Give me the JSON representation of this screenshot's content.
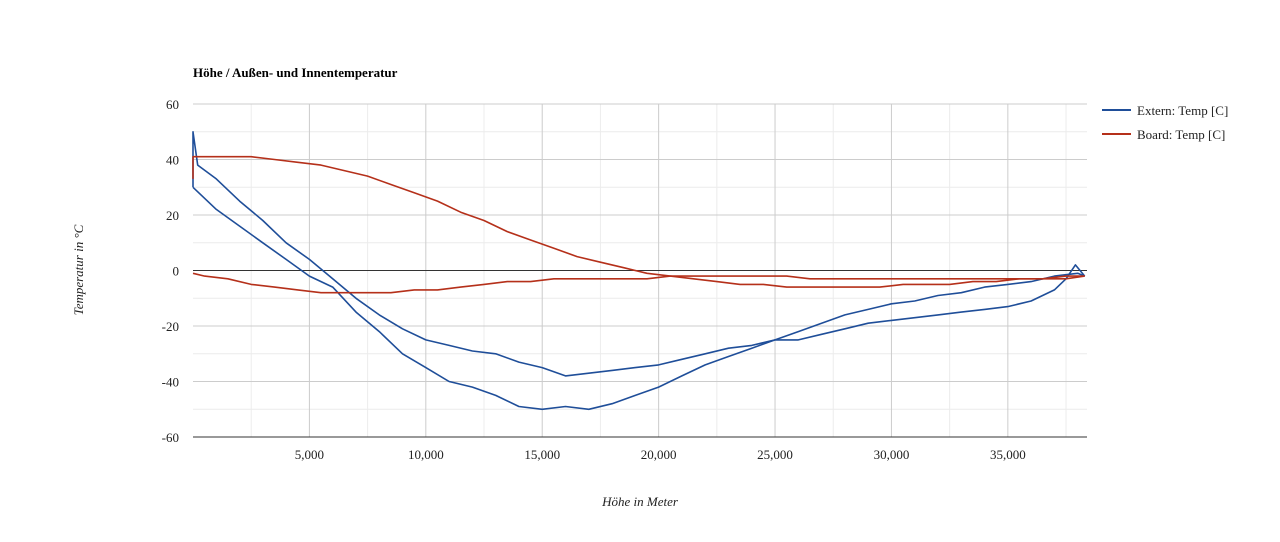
{
  "chart_data": {
    "type": "line",
    "title": "Höhe / Außen- und Innentemperatur",
    "xlabel": "Höhe in Meter",
    "ylabel": "Temperatur in °C",
    "xlim": [
      0,
      38400
    ],
    "ylim": [
      -60,
      60
    ],
    "x_ticks": [
      5000,
      10000,
      15000,
      20000,
      25000,
      30000,
      35000
    ],
    "x_tick_labels": [
      "5,000",
      "10,000",
      "15,000",
      "20,000",
      "25,000",
      "30,000",
      "35,000"
    ],
    "y_ticks": [
      -60,
      -40,
      -20,
      0,
      20,
      40,
      60
    ],
    "y_tick_labels": [
      "-60",
      "-40",
      "-20",
      "0",
      "20",
      "40",
      "60"
    ],
    "grid": true,
    "legend_position": "right",
    "series": [
      {
        "name": "Extern: Temp [C]",
        "color": "#1f4e99",
        "ascent": [
          [
            0,
            30
          ],
          [
            0,
            50
          ],
          [
            200,
            38
          ],
          [
            1000,
            33
          ],
          [
            2000,
            25
          ],
          [
            3000,
            18
          ],
          [
            4000,
            10
          ],
          [
            5000,
            4
          ],
          [
            6000,
            -3
          ],
          [
            7000,
            -10
          ],
          [
            8000,
            -16
          ],
          [
            9000,
            -21
          ],
          [
            10000,
            -25
          ],
          [
            11000,
            -27
          ],
          [
            12000,
            -29
          ],
          [
            13000,
            -30
          ],
          [
            14000,
            -33
          ],
          [
            15000,
            -35
          ],
          [
            16000,
            -38
          ],
          [
            17000,
            -37
          ],
          [
            18000,
            -36
          ],
          [
            19000,
            -35
          ],
          [
            20000,
            -34
          ],
          [
            21000,
            -32
          ],
          [
            22000,
            -30
          ],
          [
            23000,
            -28
          ],
          [
            24000,
            -27
          ],
          [
            25000,
            -25
          ],
          [
            26000,
            -25
          ],
          [
            27000,
            -23
          ],
          [
            28000,
            -21
          ],
          [
            29000,
            -19
          ],
          [
            30000,
            -18
          ],
          [
            31000,
            -17
          ],
          [
            32000,
            -16
          ],
          [
            33000,
            -15
          ],
          [
            34000,
            -14
          ],
          [
            35000,
            -13
          ],
          [
            36000,
            -11
          ],
          [
            37000,
            -7
          ],
          [
            37500,
            -3
          ],
          [
            37900,
            2
          ],
          [
            38300,
            -2
          ]
        ],
        "descent": [
          [
            38300,
            -2
          ],
          [
            38000,
            -1
          ],
          [
            37000,
            -2
          ],
          [
            36000,
            -4
          ],
          [
            35000,
            -5
          ],
          [
            34000,
            -6
          ],
          [
            33000,
            -8
          ],
          [
            32000,
            -9
          ],
          [
            31000,
            -11
          ],
          [
            30000,
            -12
          ],
          [
            29000,
            -14
          ],
          [
            28000,
            -16
          ],
          [
            27000,
            -19
          ],
          [
            26000,
            -22
          ],
          [
            25000,
            -25
          ],
          [
            24000,
            -28
          ],
          [
            23000,
            -31
          ],
          [
            22000,
            -34
          ],
          [
            21000,
            -38
          ],
          [
            20000,
            -42
          ],
          [
            19000,
            -45
          ],
          [
            18000,
            -48
          ],
          [
            17000,
            -50
          ],
          [
            16000,
            -49
          ],
          [
            15000,
            -50
          ],
          [
            14000,
            -49
          ],
          [
            13000,
            -45
          ],
          [
            12000,
            -42
          ],
          [
            11000,
            -40
          ],
          [
            10000,
            -35
          ],
          [
            9000,
            -30
          ],
          [
            8000,
            -22
          ],
          [
            7000,
            -15
          ],
          [
            6000,
            -6
          ],
          [
            5000,
            -2
          ],
          [
            4000,
            4
          ],
          [
            3000,
            10
          ],
          [
            2000,
            16
          ],
          [
            1000,
            22
          ],
          [
            0,
            30
          ]
        ]
      },
      {
        "name": "Board: Temp [C]",
        "color": "#b5301a",
        "ascent": [
          [
            0,
            33
          ],
          [
            0,
            41
          ],
          [
            500,
            41
          ],
          [
            1500,
            41
          ],
          [
            2500,
            41
          ],
          [
            3500,
            40
          ],
          [
            4500,
            39
          ],
          [
            5500,
            38
          ],
          [
            6500,
            36
          ],
          [
            7500,
            34
          ],
          [
            8500,
            31
          ],
          [
            9500,
            28
          ],
          [
            10500,
            25
          ],
          [
            11500,
            21
          ],
          [
            12500,
            18
          ],
          [
            13500,
            14
          ],
          [
            14500,
            11
          ],
          [
            15500,
            8
          ],
          [
            16500,
            5
          ],
          [
            17500,
            3
          ],
          [
            18500,
            1
          ],
          [
            19500,
            -1
          ],
          [
            20500,
            -2
          ],
          [
            21500,
            -3
          ],
          [
            22500,
            -4
          ],
          [
            23500,
            -5
          ],
          [
            24500,
            -5
          ],
          [
            25500,
            -6
          ],
          [
            26500,
            -6
          ],
          [
            27500,
            -6
          ],
          [
            28500,
            -6
          ],
          [
            29500,
            -6
          ],
          [
            30500,
            -5
          ],
          [
            31500,
            -5
          ],
          [
            32500,
            -5
          ],
          [
            33500,
            -4
          ],
          [
            34500,
            -4
          ],
          [
            35500,
            -3
          ],
          [
            36500,
            -3
          ],
          [
            37500,
            -2
          ],
          [
            38300,
            -2
          ]
        ],
        "descent": [
          [
            38300,
            -2
          ],
          [
            37500,
            -3
          ],
          [
            36500,
            -3
          ],
          [
            35500,
            -3
          ],
          [
            34500,
            -3
          ],
          [
            33500,
            -3
          ],
          [
            32500,
            -3
          ],
          [
            31500,
            -3
          ],
          [
            30500,
            -3
          ],
          [
            29500,
            -3
          ],
          [
            28500,
            -3
          ],
          [
            27500,
            -3
          ],
          [
            26500,
            -3
          ],
          [
            25500,
            -2
          ],
          [
            24500,
            -2
          ],
          [
            23500,
            -2
          ],
          [
            22500,
            -2
          ],
          [
            21500,
            -2
          ],
          [
            20500,
            -2
          ],
          [
            19500,
            -3
          ],
          [
            18500,
            -3
          ],
          [
            17500,
            -3
          ],
          [
            16500,
            -3
          ],
          [
            15500,
            -3
          ],
          [
            14500,
            -4
          ],
          [
            13500,
            -4
          ],
          [
            12500,
            -5
          ],
          [
            11500,
            -6
          ],
          [
            10500,
            -7
          ],
          [
            9500,
            -7
          ],
          [
            8500,
            -8
          ],
          [
            7500,
            -8
          ],
          [
            6500,
            -8
          ],
          [
            5500,
            -8
          ],
          [
            4500,
            -7
          ],
          [
            3500,
            -6
          ],
          [
            2500,
            -5
          ],
          [
            1500,
            -3
          ],
          [
            500,
            -2
          ],
          [
            0,
            -1
          ]
        ]
      }
    ]
  }
}
